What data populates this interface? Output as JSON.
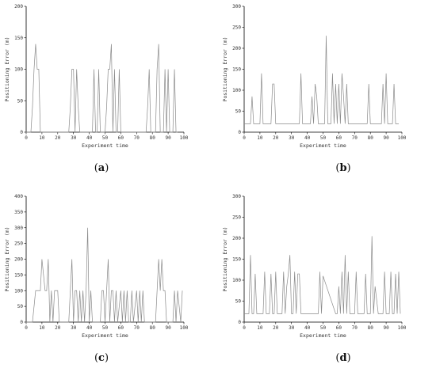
{
  "chart_data": [
    {
      "type": "line",
      "caption": "a",
      "xlabel": "Experiment time",
      "ylabel": "Positioning Error (m)",
      "xlim": [
        0,
        100
      ],
      "ylim": [
        0,
        200
      ],
      "xticks": [
        0,
        10,
        20,
        30,
        40,
        50,
        60,
        70,
        80,
        90,
        100
      ],
      "yticks": [
        0,
        50,
        100,
        150,
        200
      ],
      "x": [
        0,
        3,
        4,
        5,
        6,
        7,
        8,
        9,
        10,
        27,
        28,
        29,
        30,
        31,
        32,
        33,
        34,
        35,
        42,
        43,
        44,
        45,
        46,
        47,
        48,
        50,
        51,
        52,
        53,
        54,
        55,
        56,
        57,
        58,
        59,
        60,
        61,
        62,
        76,
        77,
        78,
        79,
        82,
        83,
        84,
        85,
        87,
        88,
        89,
        90,
        91,
        93,
        94,
        95,
        96
      ],
      "y": [
        0,
        0,
        40,
        100,
        140,
        100,
        100,
        0,
        0,
        0,
        40,
        100,
        100,
        0,
        100,
        40,
        0,
        0,
        0,
        100,
        0,
        0,
        100,
        0,
        0,
        0,
        40,
        100,
        100,
        140,
        0,
        100,
        0,
        0,
        100,
        0,
        0,
        0,
        0,
        40,
        100,
        0,
        0,
        100,
        140,
        0,
        0,
        100,
        0,
        100,
        0,
        0,
        100,
        0,
        0
      ]
    },
    {
      "type": "line",
      "caption": "b",
      "xlabel": "Experiment time",
      "ylabel": "Positioning Error (m)",
      "xlim": [
        0,
        100
      ],
      "ylim": [
        0,
        300
      ],
      "xticks": [
        0,
        10,
        20,
        30,
        40,
        50,
        60,
        70,
        80,
        90,
        100
      ],
      "yticks": [
        0,
        50,
        100,
        150,
        200,
        250,
        300
      ],
      "x": [
        0,
        4,
        5,
        6,
        10,
        11,
        12,
        17,
        18,
        19,
        20,
        35,
        36,
        37,
        42,
        43,
        44,
        45,
        46,
        47,
        51,
        52,
        53,
        55,
        56,
        57,
        58,
        59,
        60,
        61,
        62,
        63,
        64,
        65,
        66,
        78,
        79,
        80,
        87,
        88,
        89,
        90,
        91,
        94,
        95,
        96,
        98
      ],
      "y": [
        20,
        20,
        85,
        20,
        20,
        140,
        20,
        20,
        115,
        115,
        20,
        20,
        140,
        20,
        20,
        85,
        20,
        115,
        85,
        20,
        20,
        230,
        20,
        20,
        140,
        20,
        115,
        20,
        115,
        20,
        140,
        85,
        20,
        115,
        20,
        20,
        115,
        20,
        20,
        115,
        20,
        140,
        20,
        20,
        115,
        20,
        20
      ]
    },
    {
      "type": "line",
      "caption": "c",
      "xlabel": "Experiment time",
      "ylabel": "Positioning Error (m)",
      "xlim": [
        0,
        100
      ],
      "ylim": [
        0,
        400
      ],
      "xticks": [
        0,
        10,
        20,
        30,
        40,
        50,
        60,
        70,
        80,
        90,
        100
      ],
      "yticks": [
        0,
        50,
        100,
        150,
        200,
        250,
        300,
        350,
        400
      ],
      "x": [
        0,
        4,
        6,
        9,
        10,
        12,
        13,
        14,
        15,
        16,
        17,
        18,
        19,
        20,
        21,
        27,
        28,
        29,
        30,
        31,
        32,
        33,
        34,
        35,
        36,
        37,
        38,
        39,
        40,
        41,
        42,
        47,
        48,
        49,
        50,
        51,
        52,
        53,
        54,
        55,
        56,
        57,
        58,
        60,
        61,
        62,
        63,
        64,
        65,
        66,
        67,
        68,
        70,
        71,
        72,
        73,
        74,
        75,
        76,
        82,
        83,
        84,
        85,
        86,
        87,
        88,
        89,
        93,
        94,
        95,
        96,
        98,
        99
      ],
      "y": [
        0,
        0,
        100,
        100,
        200,
        100,
        100,
        200,
        0,
        100,
        0,
        100,
        100,
        100,
        0,
        0,
        100,
        200,
        0,
        100,
        100,
        0,
        100,
        0,
        100,
        0,
        100,
        300,
        0,
        100,
        0,
        0,
        100,
        100,
        0,
        100,
        200,
        0,
        100,
        100,
        0,
        100,
        0,
        100,
        0,
        100,
        0,
        100,
        0,
        0,
        100,
        0,
        100,
        0,
        100,
        0,
        100,
        0,
        0,
        0,
        100,
        200,
        100,
        200,
        100,
        100,
        0,
        0,
        100,
        0,
        100,
        0,
        100
      ]
    },
    {
      "type": "line",
      "caption": "d",
      "xlabel": "Experiment time",
      "ylabel": "Positioning Error (m)",
      "xlim": [
        0,
        100
      ],
      "ylim": [
        0,
        300
      ],
      "xticks": [
        0,
        10,
        20,
        30,
        40,
        50,
        60,
        70,
        80,
        90,
        100
      ],
      "yticks": [
        0,
        50,
        100,
        150,
        200,
        250,
        300
      ],
      "x": [
        0,
        3,
        4,
        5,
        6,
        7,
        8,
        9,
        12,
        13,
        14,
        16,
        17,
        18,
        19,
        20,
        21,
        24,
        25,
        26,
        27,
        28,
        29,
        30,
        31,
        32,
        33,
        34,
        35,
        36,
        37,
        38,
        47,
        48,
        49,
        50,
        58,
        59,
        60,
        61,
        62,
        63,
        64,
        65,
        66,
        67,
        68,
        70,
        71,
        72,
        73,
        76,
        77,
        78,
        80,
        81,
        82,
        83,
        85,
        86,
        88,
        89,
        90,
        91,
        92,
        93,
        94,
        95,
        96,
        97,
        98,
        99
      ],
      "y": [
        20,
        20,
        160,
        20,
        20,
        115,
        20,
        20,
        20,
        120,
        20,
        20,
        115,
        20,
        20,
        120,
        20,
        20,
        120,
        20,
        85,
        115,
        160,
        20,
        20,
        120,
        20,
        115,
        115,
        20,
        20,
        20,
        20,
        120,
        20,
        110,
        20,
        20,
        85,
        20,
        120,
        20,
        160,
        20,
        120,
        20,
        20,
        20,
        120,
        20,
        20,
        20,
        115,
        20,
        20,
        205,
        20,
        85,
        20,
        20,
        20,
        120,
        20,
        20,
        20,
        120,
        20,
        20,
        115,
        20,
        120,
        20
      ]
    }
  ]
}
